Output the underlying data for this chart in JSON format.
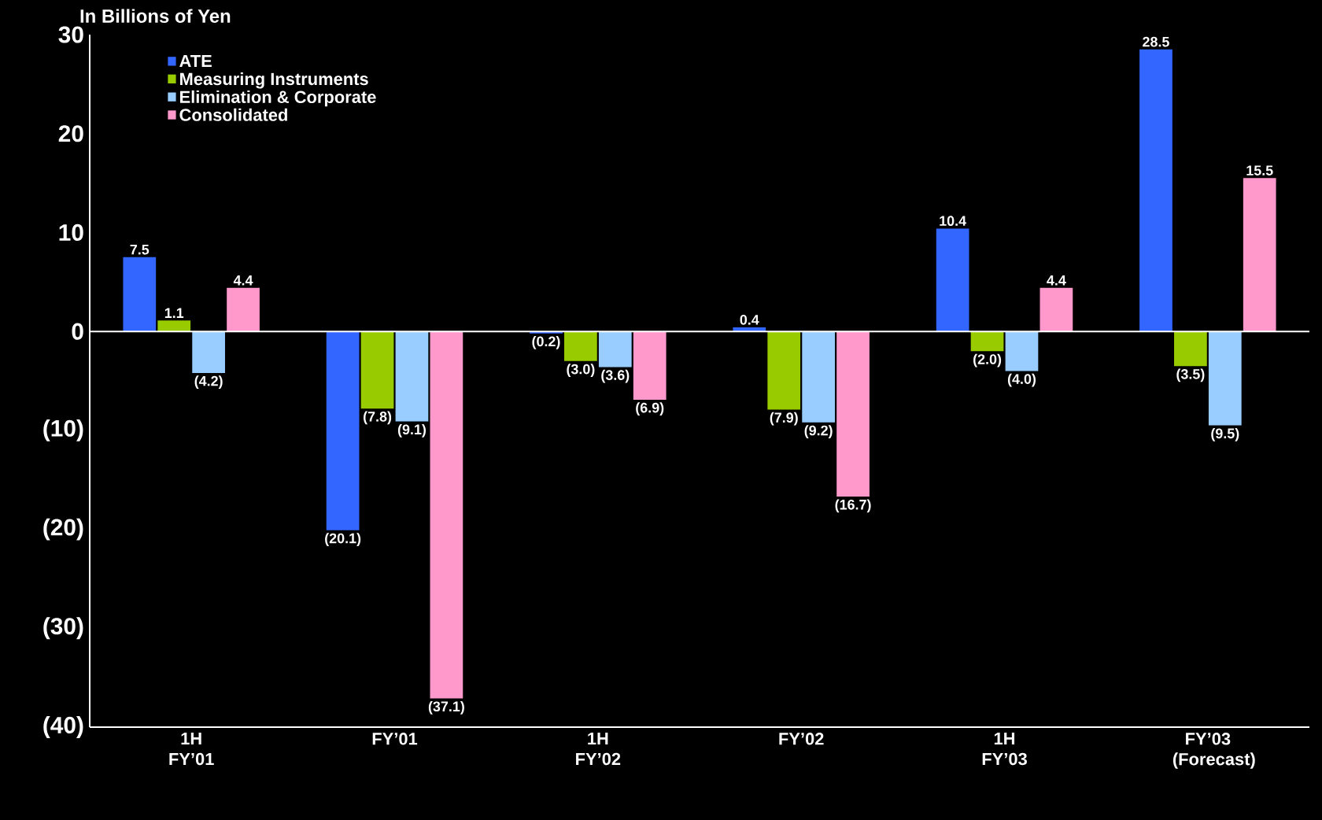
{
  "chart_data": {
    "type": "bar",
    "title": "In Billions of Yen",
    "categories": [
      "1H FY’01",
      "FY’01",
      "1H FY’02",
      "FY’02",
      "1H FY’03",
      "FY’03 (Forecast)"
    ],
    "series": [
      {
        "name": "ATE",
        "color": "#3366ff",
        "values": [
          7.5,
          -20.1,
          -0.2,
          0.4,
          10.4,
          28.5
        ],
        "value_labels": [
          "7.5",
          "(20.1)",
          "(0.2)",
          "0.4",
          "10.4",
          "28.5"
        ]
      },
      {
        "name": "Measuring Instruments",
        "color": "#99cc00",
        "values": [
          1.1,
          -7.8,
          -3.0,
          -7.9,
          -2.0,
          -3.5
        ],
        "value_labels": [
          "1.1",
          "(7.8)",
          "(3.0)",
          "(7.9)",
          "(2.0)",
          "(3.5)"
        ]
      },
      {
        "name": "Elimination & Corporate",
        "color": "#99ccff",
        "values": [
          -4.2,
          -9.1,
          -3.6,
          -9.2,
          -4.0,
          -9.5
        ],
        "value_labels": [
          "(4.2)",
          "(9.1)",
          "(3.6)",
          "(9.2)",
          "(4.0)",
          "(9.5)"
        ]
      },
      {
        "name": "Consolidated",
        "color": "#ff99cc",
        "values": [
          4.4,
          -37.1,
          -6.9,
          -16.7,
          4.4,
          15.5
        ],
        "value_labels": [
          "4.4",
          "(37.1)",
          "(6.9)",
          "(16.7)",
          "4.4",
          "15.5"
        ]
      }
    ],
    "ylim": [
      -40,
      30
    ],
    "yticks": [
      30,
      20,
      10,
      0,
      {
        "value": -10,
        "label": "(10)"
      },
      {
        "value": -20,
        "label": "(20)"
      },
      {
        "value": -30,
        "label": "(30)"
      },
      {
        "value": -40,
        "label": "(40)"
      }
    ],
    "legend": "top left"
  }
}
